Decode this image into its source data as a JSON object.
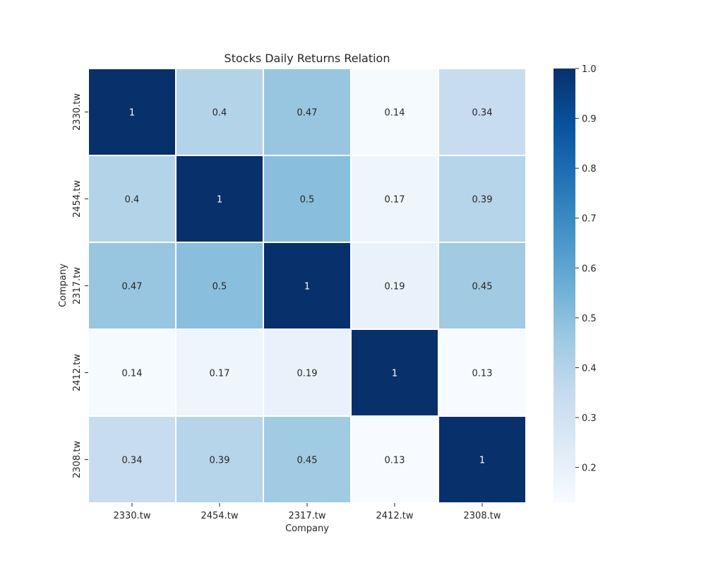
{
  "chart_data": {
    "type": "heatmap",
    "title": "Stocks Daily Returns Relation",
    "xlabel": "Company",
    "ylabel": "Company",
    "x_categories": [
      "2330.tw",
      "2454.tw",
      "2317.tw",
      "2412.tw",
      "2308.tw"
    ],
    "y_categories": [
      "2330.tw",
      "2454.tw",
      "2317.tw",
      "2412.tw",
      "2308.tw"
    ],
    "values": [
      [
        1,
        0.4,
        0.47,
        0.14,
        0.34
      ],
      [
        0.4,
        1,
        0.5,
        0.17,
        0.39
      ],
      [
        0.47,
        0.5,
        1,
        0.19,
        0.45
      ],
      [
        0.14,
        0.17,
        0.19,
        1,
        0.13
      ],
      [
        0.34,
        0.39,
        0.45,
        0.13,
        1
      ]
    ],
    "colormap": "Blues",
    "colorbar": {
      "range": [
        0.13,
        1.0
      ],
      "ticks": [
        "0.2",
        "0.3",
        "0.4",
        "0.5",
        "0.6",
        "0.7",
        "0.8",
        "0.9",
        "1.0"
      ]
    },
    "cell_border_color": "#ffffff",
    "annotation_dark_color": "#262626",
    "annotation_light_color": "#ffffff"
  }
}
